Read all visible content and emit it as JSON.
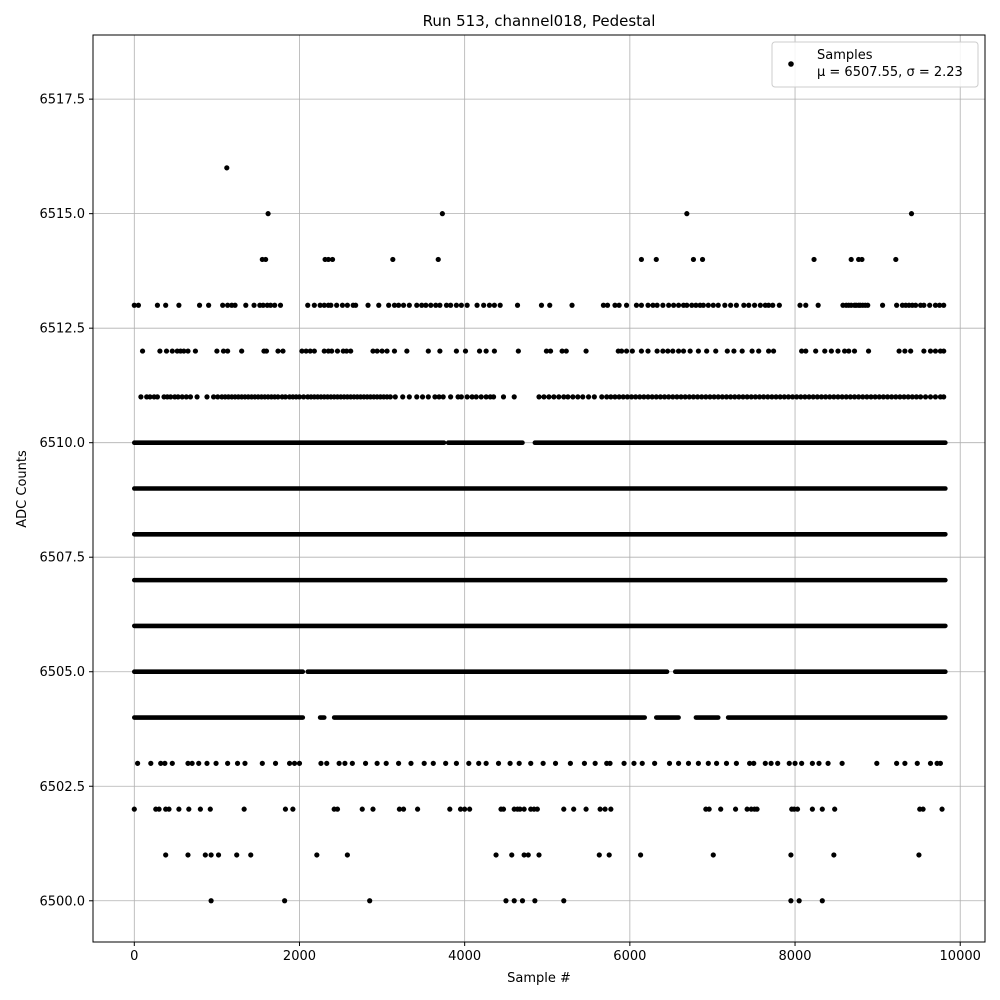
{
  "chart_data": {
    "type": "scatter",
    "title": "Run 513, channel018, Pedestal",
    "xlabel": "Sample #",
    "ylabel": "ADC Counts",
    "xlim": [
      -500,
      10300
    ],
    "ylim": [
      6499.1,
      6518.9
    ],
    "xticks": [
      0,
      2000,
      4000,
      6000,
      8000,
      10000
    ],
    "yticks": [
      6500.0,
      6502.5,
      6505.0,
      6507.5,
      6510.0,
      6512.5,
      6515.0,
      6517.5
    ],
    "xtick_labels": [
      "0",
      "2000",
      "4000",
      "6000",
      "8000",
      "10000"
    ],
    "ytick_labels": [
      "6500.0",
      "6502.5",
      "6505.0",
      "6507.5",
      "6510.0",
      "6512.5",
      "6515.0",
      "6517.5"
    ],
    "grid": true,
    "legend_position": "top-right",
    "legend": {
      "series_name": "Samples",
      "stats_label": "μ = 6507.55, σ = 2.23"
    },
    "marker_color": "#000000",
    "n_samples": 9830,
    "series": [
      {
        "name": "Samples",
        "bands": [
          {
            "y": 6500,
            "x": [
              930,
              1820,
              2850,
              4500,
              4600,
              4700,
              4850,
              5200,
              7950,
              8050,
              8330
            ]
          },
          {
            "y": 6501,
            "x": [
              380,
              650,
              860,
              930,
              1020,
              1240,
              1410,
              2210,
              2580,
              4380,
              4570,
              4720,
              4770,
              4900,
              5630,
              5750,
              6130,
              7010,
              7950,
              8470,
              9500
            ]
          },
          {
            "y": 6502,
            "x": [
              0,
              260,
              300,
              380,
              420,
              540,
              660,
              800,
              920,
              1330,
              1830,
              1920,
              2420,
              2460,
              2760,
              2890,
              3210,
              3260,
              3430,
              3820,
              3950,
              4000,
              4060,
              4440,
              4470,
              4600,
              4640,
              4670,
              4720,
              4800,
              4840,
              4880,
              5200,
              5320,
              5470,
              5640,
              5700,
              5770,
              6920,
              6960,
              7100,
              7280,
              7420,
              7470,
              7510,
              7540,
              7960,
              7990,
              8030,
              8210,
              8330,
              8480,
              9510,
              9550,
              9780
            ]
          },
          {
            "y": 6503,
            "x": [
              40,
              200,
              320,
              370,
              460,
              650,
              700,
              780,
              880,
              990,
              1130,
              1250,
              1340,
              1550,
              1710,
              1880,
              1940,
              2000,
              2260,
              2330,
              2480,
              2550,
              2640,
              2800,
              2940,
              3050,
              3200,
              3350,
              3510,
              3620,
              3770,
              3900,
              4050,
              4170,
              4260,
              4410,
              4550,
              4660,
              4800,
              4950,
              5100,
              5280,
              5450,
              5580,
              5720,
              5760,
              5930,
              6050,
              6150,
              6300,
              6480,
              6590,
              6710,
              6830,
              6950,
              7050,
              7170,
              7290,
              7450,
              7500,
              7640,
              7710,
              7790,
              7930,
              8000,
              8080,
              8210,
              8290,
              8400,
              8570,
              8990,
              9230,
              9330,
              9480,
              9640,
              9720,
              9760
            ]
          },
          {
            "y": 6504,
            "dense": [
              [
                0,
                2040
              ],
              [
                2250,
                2300
              ],
              [
                2420,
                6180
              ],
              [
                6320,
                6590
              ],
              [
                6800,
                7070
              ],
              [
                7190,
                9820
              ]
            ]
          },
          {
            "y": 6505,
            "dense": [
              [
                0,
                2040
              ],
              [
                2100,
                6450
              ],
              [
                6550,
                9820
              ]
            ]
          },
          {
            "y": 6506,
            "dense": [
              [
                0,
                9820
              ]
            ]
          },
          {
            "y": 6507,
            "dense": [
              [
                0,
                9820
              ]
            ]
          },
          {
            "y": 6508,
            "dense": [
              [
                0,
                9820
              ]
            ]
          },
          {
            "y": 6509,
            "dense": [
              [
                0,
                9820
              ]
            ]
          },
          {
            "y": 6510,
            "dense": [
              [
                0,
                3750
              ],
              [
                3800,
                4700
              ],
              [
                4850,
                9820
              ]
            ]
          },
          {
            "y": 6511,
            "x": [
              80,
              150,
              190,
              240,
              280,
              360,
              400,
              440,
              490,
              530,
              580,
              630,
              680,
              760,
              880,
              960,
              1010,
              1060,
              1100,
              1140,
              1180,
              1220,
              1260,
              1300,
              1340,
              1380,
              1420,
              1460,
              1500,
              1540,
              1580,
              1620,
              1660,
              1700,
              1740,
              1790,
              1830,
              1880,
              1920,
              1960,
              2000,
              2050,
              2100,
              2140,
              2180,
              2220,
              2260,
              2300,
              2340,
              2380,
              2420,
              2460,
              2500,
              2540,
              2580,
              2620,
              2660,
              2700,
              2740,
              2780,
              2820,
              2860,
              2900,
              2940,
              2980,
              3020,
              3060,
              3100,
              3160,
              3250,
              3330,
              3420,
              3490,
              3560,
              3640,
              3690,
              3740,
              3830,
              3920,
              3960,
              4030,
              4090,
              4140,
              4200,
              4260,
              4310,
              4350,
              4470,
              4600,
              4900,
              4960,
              5020,
              5080,
              5140,
              5200,
              5250,
              5310,
              5370,
              5430,
              5500,
              5570,
              5660,
              5720,
              5770,
              5820,
              5870,
              5920,
              5970,
              6020,
              6070,
              6120,
              6170,
              6220,
              6270,
              6320,
              6370,
              6420,
              6470,
              6520,
              6570,
              6620,
              6670,
              6720,
              6770,
              6820,
              6870,
              6920,
              6970,
              7020,
              7070,
              7120,
              7170,
              7220,
              7270,
              7320,
              7370,
              7420,
              7470,
              7520,
              7570,
              7620,
              7670,
              7720,
              7770,
              7820,
              7870,
              7920,
              7970,
              8020,
              8070,
              8120,
              8170,
              8220,
              8270,
              8320,
              8370,
              8420,
              8470,
              8520,
              8570,
              8620,
              8670,
              8720,
              8770,
              8820,
              8870,
              8920,
              8970,
              9020,
              9070,
              9120,
              9170,
              9220,
              9270,
              9320,
              9370,
              9420,
              9470,
              9520,
              9580,
              9640,
              9700,
              9760,
              9800
            ]
          },
          {
            "y": 6512,
            "x": [
              100,
              310,
              390,
              460,
              520,
              560,
              600,
              650,
              740,
              1000,
              1080,
              1130,
              1300,
              1570,
              1600,
              1740,
              1800,
              2030,
              2080,
              2130,
              2180,
              2300,
              2350,
              2390,
              2460,
              2530,
              2570,
              2620,
              2890,
              2940,
              3000,
              3060,
              3150,
              3300,
              3560,
              3700,
              3900,
              4010,
              4180,
              4260,
              4360,
              4650,
              4990,
              5040,
              5180,
              5230,
              5470,
              5860,
              5900,
              5960,
              6030,
              6140,
              6220,
              6330,
              6400,
              6460,
              6520,
              6590,
              6650,
              6730,
              6830,
              6930,
              7040,
              7180,
              7260,
              7360,
              7480,
              7560,
              7680,
              7740,
              8080,
              8130,
              8250,
              8360,
              8440,
              8520,
              8600,
              8650,
              8720,
              8890,
              9260,
              9330,
              9400,
              9560,
              9640,
              9700,
              9760,
              9800
            ]
          },
          {
            "y": 6513,
            "x": [
              0,
              50,
              280,
              380,
              540,
              790,
              900,
              1070,
              1130,
              1180,
              1220,
              1350,
              1450,
              1520,
              1560,
              1610,
              1650,
              1700,
              1770,
              2100,
              2180,
              2250,
              2300,
              2350,
              2380,
              2450,
              2520,
              2580,
              2650,
              2680,
              2830,
              2960,
              3080,
              3150,
              3200,
              3260,
              3330,
              3420,
              3480,
              3530,
              3590,
              3650,
              3700,
              3780,
              3830,
              3900,
              3960,
              4030,
              4150,
              4230,
              4300,
              4360,
              4430,
              4640,
              4930,
              5030,
              5300,
              5680,
              5730,
              5820,
              5870,
              5960,
              6080,
              6140,
              6220,
              6280,
              6330,
              6400,
              6470,
              6530,
              6590,
              6650,
              6690,
              6750,
              6800,
              6850,
              6890,
              6950,
              7010,
              7070,
              7150,
              7220,
              7290,
              7380,
              7440,
              7510,
              7580,
              7640,
              7680,
              7730,
              7810,
              8060,
              8130,
              8280,
              8580,
              8620,
              8650,
              8680,
              8720,
              8740,
              8770,
              8790,
              8820,
              8850,
              8880,
              9060,
              9230,
              9300,
              9340,
              9380,
              9420,
              9460,
              9520,
              9560,
              9630,
              9700,
              9750,
              9800
            ]
          },
          {
            "y": 6514,
            "x": [
              1550,
              1590,
              2310,
              2350,
              2400,
              3130,
              3680,
              6140,
              6320,
              6770,
              6880,
              8230,
              8680,
              8770,
              8810,
              9220
            ]
          },
          {
            "y": 6515,
            "x": [
              1620,
              3730,
              6690,
              9410
            ]
          },
          {
            "y": 6516,
            "x": [
              1120
            ]
          }
        ]
      }
    ]
  }
}
